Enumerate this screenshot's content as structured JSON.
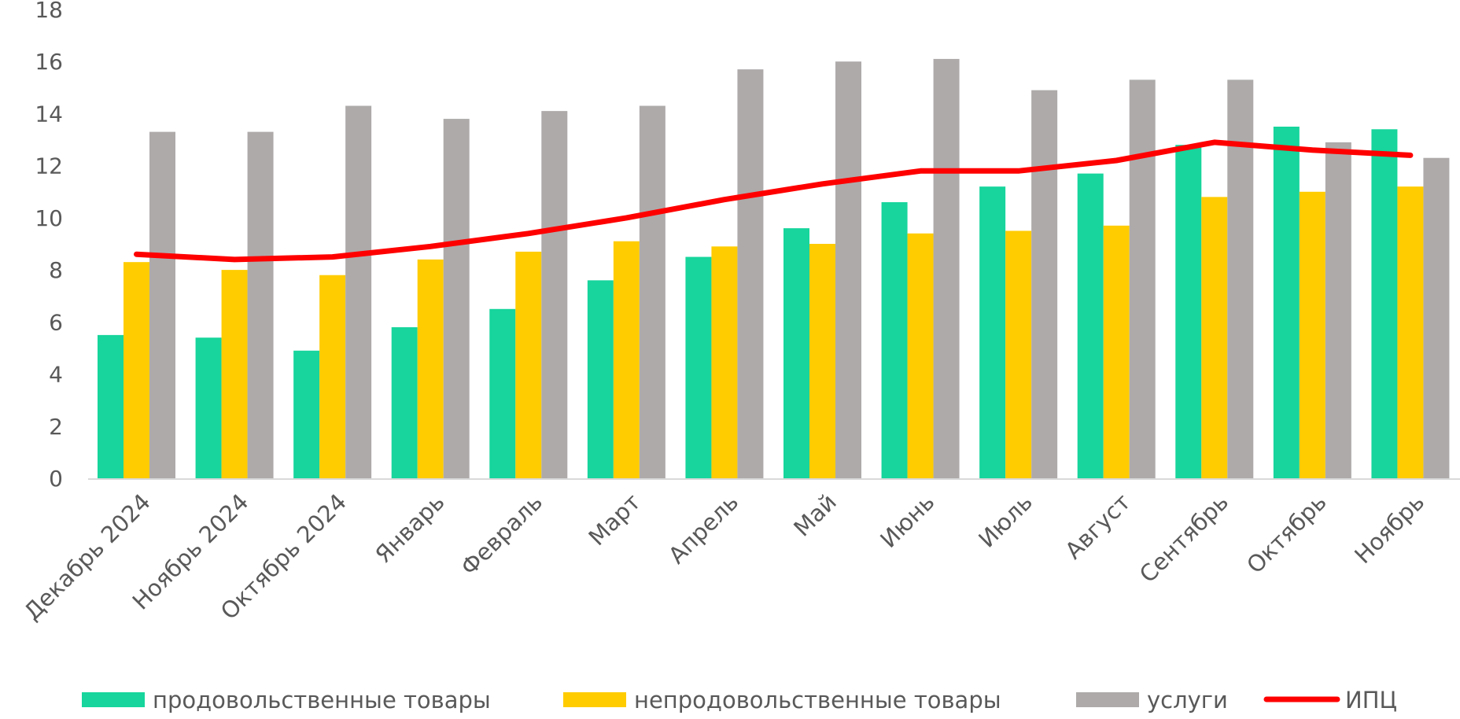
{
  "chart_data": {
    "type": "bar",
    "title": "",
    "xlabel": "",
    "ylabel": "",
    "ylim": [
      0,
      18
    ],
    "yticks": [
      0,
      2,
      4,
      6,
      8,
      10,
      12,
      14,
      16,
      18
    ],
    "grid": false,
    "legend_position": "bottom",
    "categories": [
      "Декабрь 2024",
      "Ноябрь 2024",
      "Октябрь 2024",
      "Январь",
      "Февраль",
      "Март",
      "Апрель",
      "Май",
      "Июнь",
      "Июль",
      "Август",
      "Сентябрь",
      "Октябрь",
      "Ноябрь"
    ],
    "series": [
      {
        "name": "продовольственные товары",
        "kind": "bar",
        "color": "#17d59c",
        "values": [
          5.5,
          5.4,
          4.9,
          5.8,
          6.5,
          7.6,
          8.5,
          9.6,
          10.6,
          11.2,
          11.7,
          12.8,
          13.5,
          13.4
        ]
      },
      {
        "name": "непродовольственные товары",
        "kind": "bar",
        "color": "#ffcc00",
        "values": [
          8.3,
          8.0,
          7.8,
          8.4,
          8.7,
          9.1,
          8.9,
          9.0,
          9.4,
          9.5,
          9.7,
          10.8,
          11.0,
          11.2
        ]
      },
      {
        "name": "услуги",
        "kind": "bar",
        "color": "#aeaaaa",
        "values": [
          13.3,
          13.3,
          14.3,
          13.8,
          14.1,
          14.3,
          15.7,
          16.0,
          16.1,
          14.9,
          15.3,
          15.3,
          12.9,
          12.3
        ]
      },
      {
        "name": "ИПЦ",
        "kind": "line",
        "color": "#ff0000",
        "values": [
          8.6,
          8.4,
          8.5,
          8.9,
          9.4,
          10.0,
          10.7,
          11.3,
          11.8,
          11.8,
          12.2,
          12.9,
          12.6,
          12.4
        ]
      }
    ]
  }
}
